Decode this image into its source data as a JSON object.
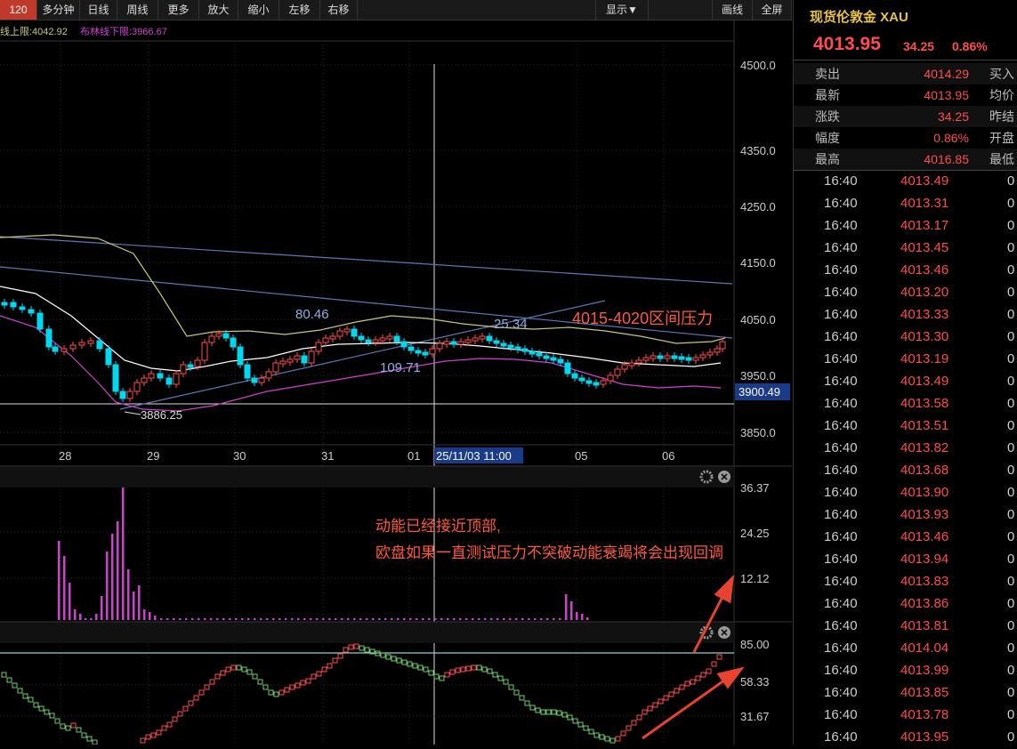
{
  "toolbar": {
    "buttons": [
      "120分",
      "多分钟",
      "日线",
      "周线",
      "更多▼",
      "放大",
      "缩小",
      "左移",
      "右移"
    ],
    "right_buttons": [
      "显示▼",
      "画线",
      "全屏"
    ]
  },
  "main_chart": {
    "legend_upper": "线上限:4042.92",
    "legend_lower": "布林线下限:3966.67",
    "y_ticks": [
      "4500.0",
      "4350.0",
      "4250.0",
      "4150.0",
      "4050.0",
      "3950.0",
      "3850.0"
    ],
    "current_label": "3900.49",
    "x_labels": [
      "28",
      "29",
      "30",
      "31",
      "01",
      "05",
      "06"
    ],
    "cursor_time": "25/11/03 11:00",
    "low_label": "3886.25",
    "annotations": [
      "80.46",
      "25.34",
      "109.71"
    ],
    "pressure_note": "4015-4020区间压力",
    "colors": {
      "up": "#ff4c4c",
      "down": "#00d8f0",
      "boll_upper": "#c8c878",
      "boll_mid": "#ffffff",
      "boll_lower": "#d040d0",
      "trend": "#5a78b8"
    }
  },
  "volume_panel": {
    "y_ticks": [
      "36.37",
      "24.25",
      "12.12"
    ],
    "note_line1": "动能已经接近顶部,",
    "note_line2": "欧盘如果一直测试压力不突破动能衰竭将会出现回调"
  },
  "osc_panel": {
    "y_ticks": [
      "85.00",
      "58.33",
      "31.67"
    ]
  },
  "side_panel": {
    "title": "现货伦敦金 XAU",
    "price": "4013.95",
    "change": "34.25",
    "pct": "0.86%",
    "quote_rows": [
      {
        "label": "卖出",
        "value": "4014.29",
        "label2": "买入"
      },
      {
        "label": "最新",
        "value": "4013.95",
        "label2": "均价"
      },
      {
        "label": "涨跌",
        "value": "34.25",
        "label2": "昨结"
      },
      {
        "label": "幅度",
        "value": "0.86%",
        "label2": "开盘"
      },
      {
        "label": "最高",
        "value": "4016.85",
        "label2": "最低"
      }
    ],
    "ticks": [
      {
        "t": "16:40",
        "p": "4013.49",
        "v": "0"
      },
      {
        "t": "16:40",
        "p": "4013.31",
        "v": "0"
      },
      {
        "t": "16:40",
        "p": "4013.17",
        "v": "0"
      },
      {
        "t": "16:40",
        "p": "4013.45",
        "v": "0"
      },
      {
        "t": "16:40",
        "p": "4013.46",
        "v": "0"
      },
      {
        "t": "16:40",
        "p": "4013.20",
        "v": "0"
      },
      {
        "t": "16:40",
        "p": "4013.33",
        "v": "0"
      },
      {
        "t": "16:40",
        "p": "4013.30",
        "v": "0"
      },
      {
        "t": "16:40",
        "p": "4013.19",
        "v": "0"
      },
      {
        "t": "16:40",
        "p": "4013.49",
        "v": "0"
      },
      {
        "t": "16:40",
        "p": "4013.58",
        "v": "0"
      },
      {
        "t": "16:40",
        "p": "4013.51",
        "v": "0"
      },
      {
        "t": "16:40",
        "p": "4013.82",
        "v": "0"
      },
      {
        "t": "16:40",
        "p": "4013.68",
        "v": "0"
      },
      {
        "t": "16:40",
        "p": "4013.90",
        "v": "0"
      },
      {
        "t": "16:40",
        "p": "4013.93",
        "v": "0"
      },
      {
        "t": "16:40",
        "p": "4013.46",
        "v": "0"
      },
      {
        "t": "16:40",
        "p": "4013.94",
        "v": "0"
      },
      {
        "t": "16:40",
        "p": "4013.83",
        "v": "0"
      },
      {
        "t": "16:40",
        "p": "4013.86",
        "v": "0"
      },
      {
        "t": "16:40",
        "p": "4013.81",
        "v": "0"
      },
      {
        "t": "16:40",
        "p": "4014.04",
        "v": "0"
      },
      {
        "t": "16:40",
        "p": "4013.99",
        "v": "0"
      },
      {
        "t": "16:40",
        "p": "4013.85",
        "v": "0"
      },
      {
        "t": "16:40",
        "p": "4013.78",
        "v": "0"
      },
      {
        "t": "16:40",
        "p": "4013.95",
        "v": "0"
      }
    ]
  }
}
